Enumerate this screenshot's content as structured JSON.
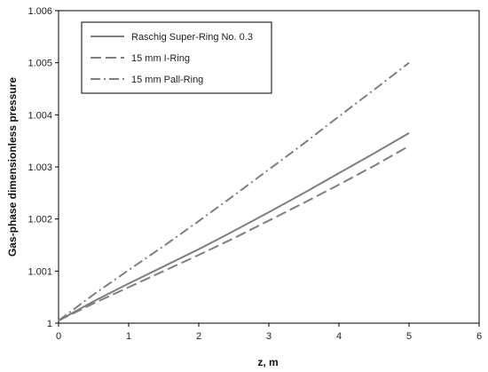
{
  "chart_data": {
    "type": "line",
    "title": "",
    "xlabel": "z, m",
    "ylabel": "Gas-phase dimensionless pressure",
    "xlim": [
      0,
      6
    ],
    "ylim": [
      1,
      1.006
    ],
    "xticks": [
      0,
      1,
      2,
      3,
      4,
      5,
      6
    ],
    "yticks": [
      1,
      1.001,
      1.002,
      1.003,
      1.004,
      1.005,
      1.006
    ],
    "xtick_labels": [
      "0",
      "1",
      "2",
      "3",
      "4",
      "5",
      "6"
    ],
    "ytick_labels": [
      "1",
      "1.001",
      "1.002",
      "1.003",
      "1.004",
      "1.005",
      "1.006"
    ],
    "grid": false,
    "legend_position": "top-left",
    "series": [
      {
        "name": "Raschig Super-Ring No. 0.3",
        "style": "solid",
        "color": "#7f7f7f",
        "x": [
          0,
          0.5,
          1,
          1.5,
          2,
          2.5,
          3,
          3.5,
          4,
          4.5,
          5
        ],
        "y": [
          1.00005,
          1.00042,
          1.00076,
          1.00109,
          1.00142,
          1.00177,
          1.00213,
          1.0025,
          1.00288,
          1.00326,
          1.00365
        ]
      },
      {
        "name": "15 mm I-Ring",
        "style": "dashed",
        "color": "#7f7f7f",
        "x": [
          0,
          0.5,
          1,
          1.5,
          2,
          2.5,
          3,
          3.5,
          4,
          4.5,
          5
        ],
        "y": [
          1.00005,
          1.00038,
          1.00069,
          1.001,
          1.00131,
          1.00163,
          1.00197,
          1.00231,
          1.00266,
          1.00302,
          1.0034
        ]
      },
      {
        "name": "15 mm Pall-Ring",
        "style": "dashdot",
        "color": "#7f7f7f",
        "x": [
          0,
          0.5,
          1,
          1.5,
          2,
          2.5,
          3,
          3.5,
          4,
          4.5,
          5
        ],
        "y": [
          1.00005,
          1.00055,
          1.00102,
          1.00148,
          1.00196,
          1.00245,
          1.00295,
          1.00345,
          1.00397,
          1.00448,
          1.005
        ]
      }
    ]
  }
}
